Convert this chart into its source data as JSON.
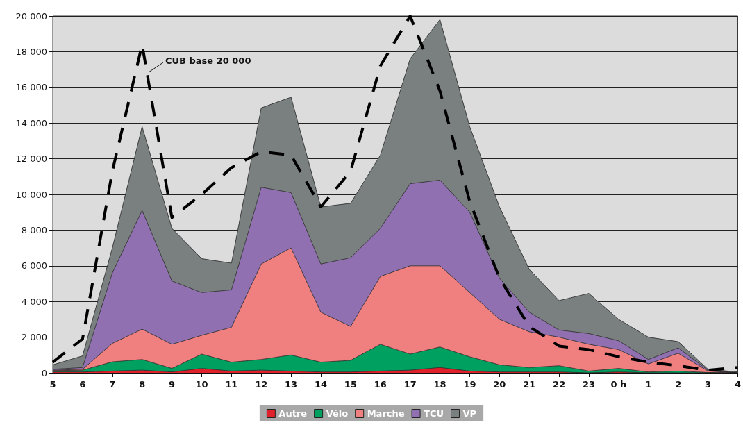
{
  "chart_data": {
    "type": "area",
    "stacked": true,
    "categories": [
      "5",
      "6",
      "7",
      "8",
      "9",
      "10",
      "11",
      "12",
      "13",
      "14",
      "15",
      "16",
      "17",
      "18",
      "19",
      "20",
      "21",
      "22",
      "23",
      "0 h",
      "1",
      "2",
      "3",
      "4"
    ],
    "series": [
      {
        "name": "Autre",
        "color": "#e0202a",
        "values": [
          50,
          50,
          100,
          150,
          50,
          250,
          100,
          150,
          100,
          50,
          50,
          100,
          150,
          300,
          100,
          50,
          50,
          50,
          0,
          50,
          0,
          0,
          0,
          0
        ]
      },
      {
        "name": "Vélo",
        "color": "#00a060",
        "values": [
          70,
          100,
          520,
          600,
          200,
          800,
          500,
          600,
          900,
          550,
          650,
          1500,
          900,
          1150,
          800,
          400,
          250,
          350,
          100,
          200,
          50,
          100,
          20,
          0
        ]
      },
      {
        "name": "Marche",
        "color": "#f08080",
        "values": [
          30,
          50,
          1030,
          1700,
          1350,
          1050,
          1950,
          5350,
          6000,
          2800,
          1900,
          3800,
          4950,
          4550,
          3600,
          2550,
          2000,
          1600,
          1500,
          1050,
          450,
          1000,
          80,
          0
        ]
      },
      {
        "name": "TCU",
        "color": "#9070b0",
        "values": [
          50,
          100,
          3950,
          6650,
          3550,
          2400,
          2100,
          4300,
          3100,
          2700,
          3850,
          2700,
          4600,
          4800,
          4500,
          2300,
          1100,
          400,
          600,
          500,
          250,
          300,
          50,
          0
        ]
      },
      {
        "name": "VP",
        "color": "#7a8080",
        "values": [
          250,
          650,
          1400,
          4700,
          2950,
          1900,
          1500,
          4450,
          5350,
          3200,
          3050,
          4100,
          7000,
          9000,
          4800,
          4000,
          2400,
          1650,
          2250,
          1200,
          1250,
          350,
          50,
          50
        ]
      },
      {
        "type": "line",
        "name": "CUB base 20 000",
        "color": "#000000",
        "line_style": "dashed",
        "marker": "none",
        "values": [
          600,
          1900,
          11300,
          18400,
          8700,
          10000,
          11500,
          12400,
          12200,
          9300,
          11300,
          17200,
          20000,
          15800,
          9600,
          5300,
          2600,
          1500,
          1300,
          900,
          600,
          400,
          150,
          300
        ]
      }
    ],
    "ylim": [
      0,
      20000
    ],
    "yticks": [
      0,
      {
        "value": 2000,
        "label": "2 000"
      },
      {
        "value": 4000,
        "label": "4 000"
      },
      {
        "value": 6000,
        "label": "6 000"
      },
      {
        "value": 8000,
        "label": "8 000"
      },
      {
        "value": 10000,
        "label": "10 000"
      },
      {
        "value": 12000,
        "label": "12 000"
      },
      {
        "value": 14000,
        "label": "14 000"
      },
      {
        "value": 16000,
        "label": "16 000"
      },
      {
        "value": 18000,
        "label": "18 000"
      },
      {
        "value": 20000,
        "label": "20 000"
      }
    ],
    "grid": "y",
    "legend": "bottom"
  }
}
